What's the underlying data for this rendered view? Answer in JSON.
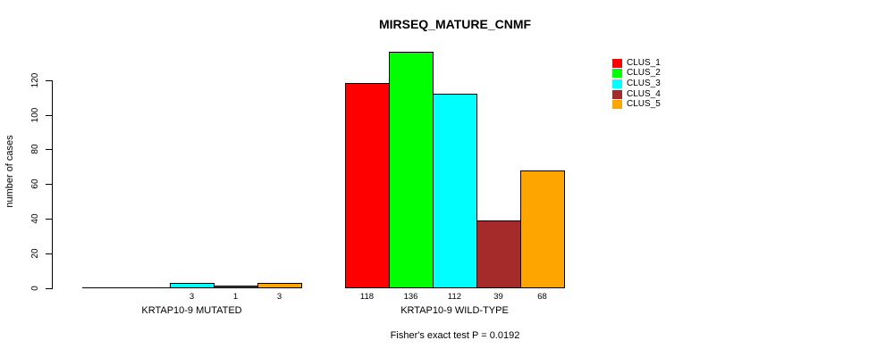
{
  "chart_data": {
    "type": "bar",
    "title": "MIRSEQ_MATURE_CNMF",
    "ylabel": "number of cases",
    "xlabel": "",
    "categories": [
      "KRTAP10-9 MUTATED",
      "KRTAP10-9 WILD-TYPE"
    ],
    "series": [
      {
        "name": "CLUS_1",
        "color": "#ff0000",
        "values": [
          0,
          118
        ]
      },
      {
        "name": "CLUS_2",
        "color": "#00ff00",
        "values": [
          0,
          136
        ]
      },
      {
        "name": "CLUS_3",
        "color": "#00ffff",
        "values": [
          3,
          112
        ]
      },
      {
        "name": "CLUS_4",
        "color": "#a52a2a",
        "values": [
          1,
          39
        ]
      },
      {
        "name": "CLUS_5",
        "color": "#ffa500",
        "values": [
          3,
          68
        ]
      }
    ],
    "bar_value_labels": {
      "KRTAP10-9 MUTATED": [
        "",
        "",
        "3",
        "1",
        "3"
      ],
      "KRTAP10-9 WILD-TYPE": [
        "118",
        "136",
        "112",
        "39",
        "68"
      ]
    },
    "yticks": [
      0,
      20,
      40,
      60,
      80,
      100,
      120
    ],
    "ylim": [
      0,
      136
    ],
    "grid": false,
    "legend_position": "top-right",
    "legend_labels": [
      "CLUS_1",
      "CLUS_2",
      "CLUS_3",
      "CLUS_4",
      "CLUS_5"
    ],
    "annotation": "Fisher's exact test P = 0.0192",
    "colors": {
      "axis": "#000000",
      "bar_border": "#000000",
      "background": "#ffffff"
    }
  }
}
